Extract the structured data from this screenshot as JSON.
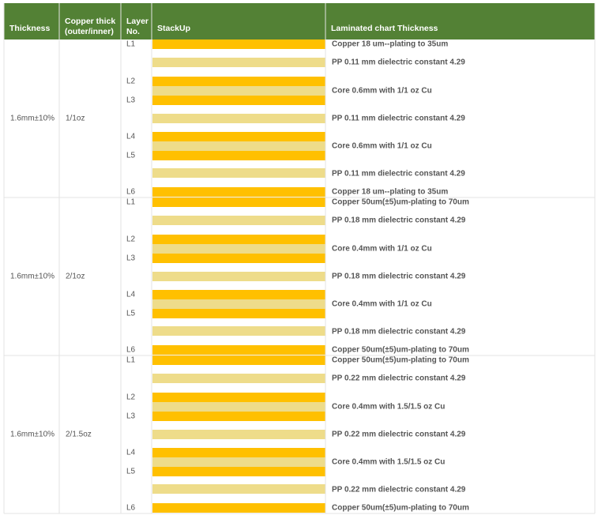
{
  "header": [
    "Thickness",
    "Copper thick\n(outer/inner)",
    "Layer\nNo.",
    "StackUp",
    "Laminated chart Thickness"
  ],
  "groups": [
    {
      "thickness": "1.6mm±10%",
      "copper": "1/1oz",
      "layers": [
        "L1",
        "L2",
        "L3",
        "L4",
        "L5",
        "L6"
      ],
      "laminate": [
        "Copper 18 um--plating to 35um",
        "PP 0.11 mm dielectric constant 4.29",
        "Core 0.6mm with 1/1 oz Cu",
        "PP 0.11 mm dielectric constant 4.29",
        "Core 0.6mm with 1/1 oz Cu",
        "PP 0.11 mm dielectric constant 4.29",
        "Copper 18 um--plating to 35um"
      ]
    },
    {
      "thickness": "1.6mm±10%",
      "copper": "2/1oz",
      "layers": [
        "L1",
        "L2",
        "L3",
        "L4",
        "L5",
        "L6"
      ],
      "laminate": [
        "Copper 50um(±5)um-plating to 70um",
        "PP 0.18 mm dielectric constant 4.29",
        "Core 0.4mm with 1/1 oz Cu",
        "PP 0.18 mm dielectric constant 4.29",
        "Core 0.4mm with 1/1 oz Cu",
        "PP 0.18 mm dielectric constant 4.29",
        "Copper 50um(±5)um-plating to 70um"
      ]
    },
    {
      "thickness": "1.6mm±10%",
      "copper": "2/1.5oz",
      "layers": [
        "L1",
        "L2",
        "L3",
        "L4",
        "L5",
        "L6"
      ],
      "laminate": [
        "Copper 50um(±5)um-plating to 70um",
        "PP 0.22 mm dielectric constant 4.29",
        "Core 0.4mm with 1.5/1.5 oz Cu",
        "PP 0.22 mm dielectric constant 4.29",
        "Core 0.4mm with 1.5/1.5 oz Cu",
        "PP 0.22 mm dielectric constant 4.29",
        "Copper 50um(±5)um-plating to 70um"
      ]
    }
  ]
}
